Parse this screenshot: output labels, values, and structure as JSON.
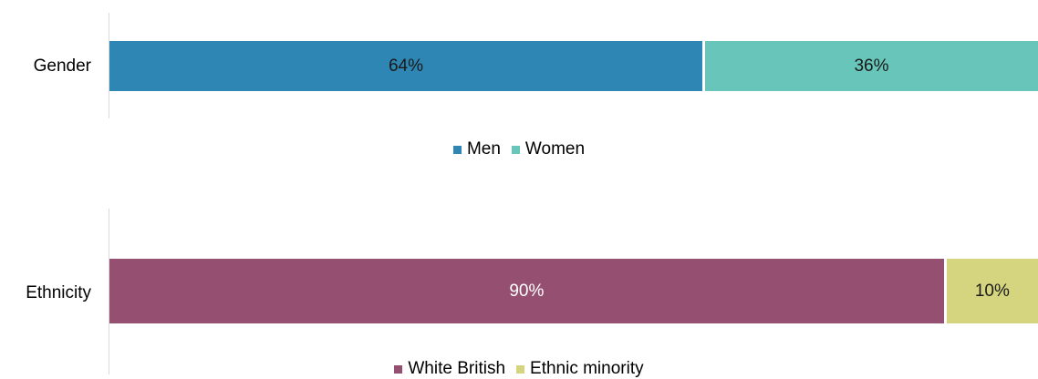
{
  "chart_data": [
    {
      "type": "bar",
      "orientation": "horizontal",
      "stacked": true,
      "categories": [
        "Gender"
      ],
      "series": [
        {
          "name": "Men",
          "values": [
            64
          ],
          "label": "64%",
          "color": "#2E86B4",
          "label_color": "#1a1a1a"
        },
        {
          "name": "Women",
          "values": [
            36
          ],
          "label": "36%",
          "color": "#68C5B9",
          "label_color": "#1a1a1a"
        }
      ],
      "xlim": [
        0,
        100
      ],
      "legend_position": "bottom"
    },
    {
      "type": "bar",
      "orientation": "horizontal",
      "stacked": true,
      "categories": [
        "Ethnicity"
      ],
      "series": [
        {
          "name": "White British",
          "values": [
            90
          ],
          "label": "90%",
          "color": "#955071",
          "label_color": "#ffffff"
        },
        {
          "name": "Ethnic minority",
          "values": [
            10
          ],
          "label": "10%",
          "color": "#D5D580",
          "label_color": "#1a1a1a"
        }
      ],
      "xlim": [
        0,
        100
      ],
      "legend_position": "bottom"
    }
  ]
}
